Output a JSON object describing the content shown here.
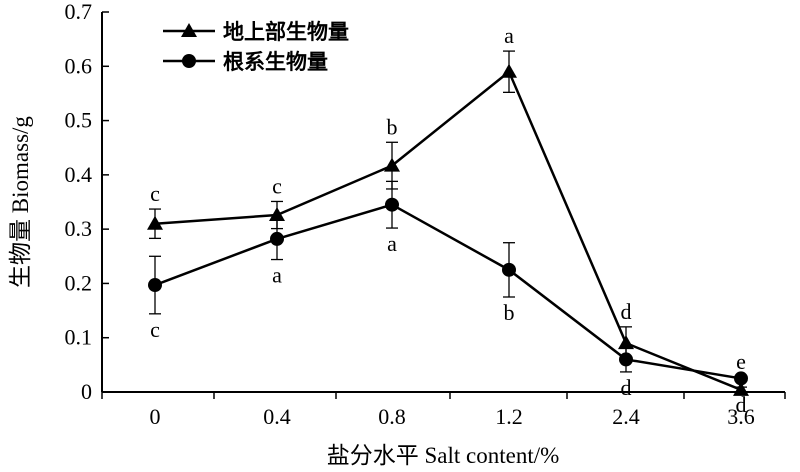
{
  "chart_data": {
    "type": "line",
    "categories": [
      "0",
      "0.4",
      "0.8",
      "1.2",
      "2.4",
      "3.6"
    ],
    "xlabel": "盐分水平 Salt content/%",
    "ylabel": "生物量 Biomass/g",
    "ylim": [
      0,
      0.7
    ],
    "yticks": [
      "0",
      "0.1",
      "0.2",
      "0.3",
      "0.4",
      "0.5",
      "0.6",
      "0.7"
    ],
    "grid": false,
    "legend_position": "top-left",
    "series": [
      {
        "name": "地上部生物量",
        "marker": "triangle",
        "values": [
          0.31,
          0.326,
          0.417,
          0.59,
          0.09,
          0.004
        ],
        "errors": [
          0.027,
          0.025,
          0.043,
          0.038,
          0.03,
          0.005
        ],
        "letters": [
          "c",
          "c",
          "b",
          "a",
          "d",
          "d"
        ]
      },
      {
        "name": "根系生物量",
        "marker": "circle",
        "values": [
          0.197,
          0.282,
          0.345,
          0.225,
          0.06,
          0.025
        ],
        "errors": [
          0.053,
          0.038,
          0.043,
          0.05,
          0.023,
          0.003
        ],
        "letters": [
          "c",
          "a",
          "a",
          "b",
          "d",
          "e"
        ]
      }
    ]
  }
}
